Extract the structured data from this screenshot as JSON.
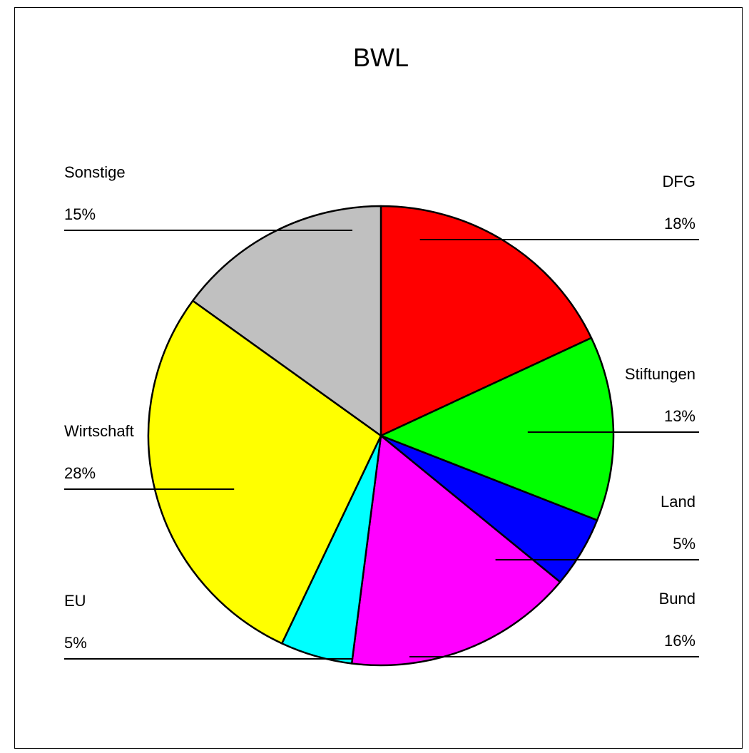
{
  "chart_data": {
    "type": "pie",
    "title": "BWL",
    "slices": [
      {
        "label": "DFG",
        "percent_label": "18%",
        "value": 18,
        "color": "#ff0000"
      },
      {
        "label": "Stiftungen",
        "percent_label": "13%",
        "value": 13,
        "color": "#00ff00"
      },
      {
        "label": "Land",
        "percent_label": "5%",
        "value": 5,
        "color": "#0000ff"
      },
      {
        "label": "Bund",
        "percent_label": "16%",
        "value": 16,
        "color": "#ff00ff"
      },
      {
        "label": "EU",
        "percent_label": "5%",
        "value": 5,
        "color": "#00ffff"
      },
      {
        "label": "Wirtschaft",
        "percent_label": "28%",
        "value": 28,
        "color": "#ffff00"
      },
      {
        "label": "Sonstige",
        "percent_label": "15%",
        "value": 15,
        "color": "#c0c0c0"
      }
    ],
    "start": "12 o'clock",
    "direction": "clockwise",
    "legend": "none"
  }
}
